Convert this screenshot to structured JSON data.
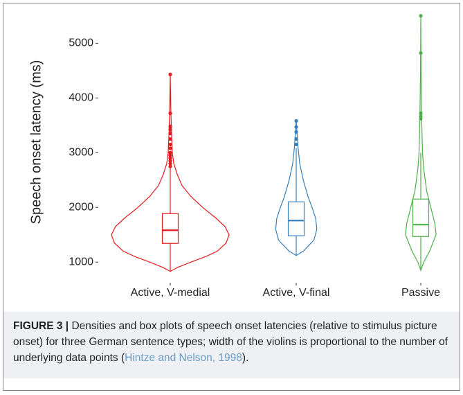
{
  "chart_data": {
    "type": "violin",
    "y_label": "Speech onset latency (ms)",
    "ylim": [
      800,
      5600
    ],
    "yticks": [
      1000,
      2000,
      3000,
      4000,
      5000
    ],
    "series": [
      {
        "name": "Active, V-medial",
        "color": "#e41a1c",
        "whisker_low": 830,
        "q1": 1342,
        "median": 1582,
        "q3": 1886,
        "whisker_high": 2730,
        "outliers": [
          4430,
          3720,
          3480,
          3420,
          3350,
          3250,
          3150,
          3080,
          3000,
          2950,
          2900,
          2850,
          2800,
          2750
        ],
        "density": {
          "y": [
            830,
            900,
            1000,
            1100,
            1200,
            1350,
            1500,
            1650,
            1800,
            2000,
            2200,
            2400,
            2600,
            2800,
            3000,
            3400,
            3800,
            4430
          ],
          "width": [
            0,
            0.12,
            0.35,
            0.6,
            0.8,
            0.95,
            1.0,
            0.93,
            0.78,
            0.55,
            0.35,
            0.2,
            0.12,
            0.06,
            0.035,
            0.02,
            0.01,
            0
          ]
        }
      },
      {
        "name": "Active, V-final",
        "color": "#377eb8",
        "whisker_low": 1120,
        "q1": 1481,
        "median": 1759,
        "q3": 2101,
        "whisker_high": 3080,
        "outliers": [
          3580,
          3470,
          3380,
          3250,
          3150
        ],
        "density": {
          "y": [
            1120,
            1200,
            1400,
            1600,
            1800,
            2000,
            2200,
            2500,
            2800,
            3100,
            3580
          ],
          "width": [
            0,
            0.12,
            0.3,
            0.35,
            0.33,
            0.27,
            0.2,
            0.12,
            0.06,
            0.03,
            0
          ]
        }
      },
      {
        "name": "Passive",
        "color": "#4daf4a",
        "whisker_low": 850,
        "q1": 1468,
        "median": 1684,
        "q3": 2152,
        "whisker_high": 3000,
        "outliers": [
          5500,
          4820,
          3720,
          3660,
          3620
        ],
        "density": {
          "y": [
            850,
            1000,
            1200,
            1500,
            1700,
            2000,
            2300,
            2700,
            3000,
            3600,
            4500,
            5500
          ],
          "width": [
            0,
            0.05,
            0.15,
            0.26,
            0.24,
            0.17,
            0.1,
            0.05,
            0.03,
            0.015,
            0.005,
            0
          ]
        }
      }
    ]
  },
  "caption": {
    "label": "FIGURE 3 |",
    "text": "Densities and box plots of speech onset latencies (relative to stimulus picture onset) for three German sentence types; width of the violins is proportional to the number of underlying data points (",
    "citation": "Hintze and Nelson, 1998",
    "end": ")."
  }
}
